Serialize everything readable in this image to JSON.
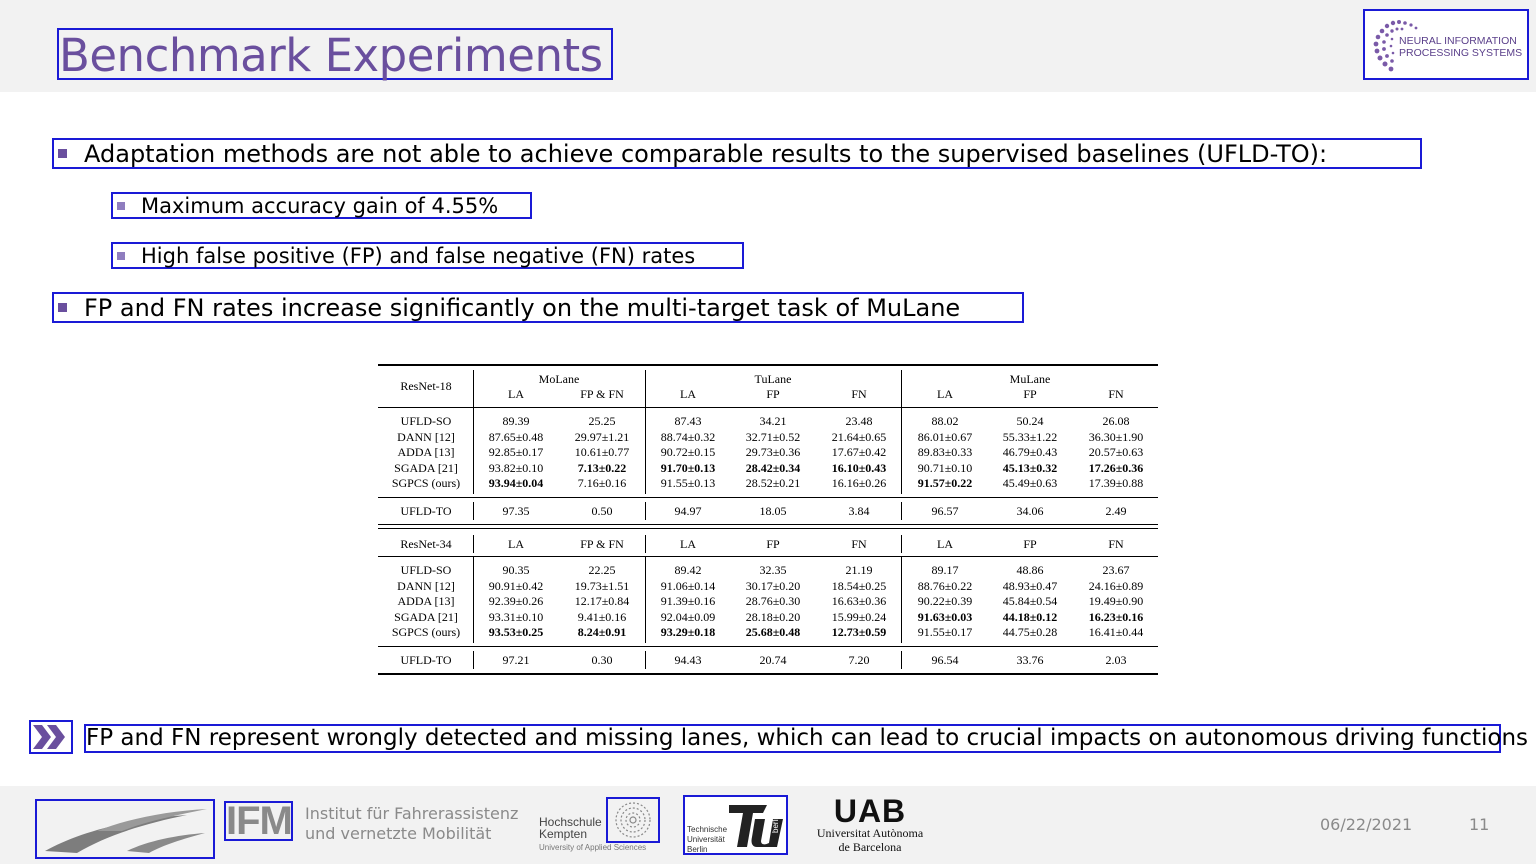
{
  "slide": {
    "title": "Benchmark Experiments",
    "logo_text_line1": "NEURAL INFORMATION",
    "logo_text_line2": "PROCESSING SYSTEMS",
    "bullets": [
      "Adaptation methods are not able to achieve comparable results to the supervised baselines (UFLD-TO):",
      "Maximum accuracy gain of 4.55%",
      "High false positive (FP) and false negative (FN) rates",
      "FP and FN rates increase significantly on the multi-target task of MuLane"
    ],
    "note": "FP and FN represent wrongly detected and missing lanes, which can lead to crucial impacts on autonomous driving functions"
  },
  "table": {
    "groups": [
      "MoLane",
      "TuLane",
      "MuLane"
    ],
    "col_headers": [
      "LA",
      "FP & FN",
      "LA",
      "FP",
      "FN",
      "LA",
      "FP",
      "FN"
    ],
    "block1": {
      "backbone": "ResNet-18",
      "methods": [
        "UFLD-SO",
        "DANN [12]",
        "ADDA [13]",
        "SGADA [21]",
        "SGPCS (ours)"
      ],
      "rows": [
        [
          "89.39",
          "25.25",
          "87.43",
          "34.21",
          "23.48",
          "88.02",
          "50.24",
          "26.08"
        ],
        [
          "87.65±0.48",
          "29.97±1.21",
          "88.74±0.32",
          "32.71±0.52",
          "21.64±0.65",
          "86.01±0.67",
          "55.33±1.22",
          "36.30±1.90"
        ],
        [
          "92.85±0.17",
          "10.61±0.77",
          "90.72±0.15",
          "29.73±0.36",
          "17.67±0.42",
          "89.83±0.33",
          "46.79±0.43",
          "20.57±0.63"
        ],
        [
          "93.82±0.10",
          "7.13±0.22",
          "91.70±0.13",
          "28.42±0.34",
          "16.10±0.43",
          "90.71±0.10",
          "45.13±0.32",
          "17.26±0.36"
        ],
        [
          "93.94±0.04",
          "7.16±0.16",
          "91.55±0.13",
          "28.52±0.21",
          "16.16±0.26",
          "91.57±0.22",
          "45.49±0.63",
          "17.39±0.88"
        ]
      ],
      "bold": [
        [
          3,
          1
        ],
        [
          3,
          2
        ],
        [
          3,
          3
        ],
        [
          3,
          4
        ],
        [
          3,
          6
        ],
        [
          3,
          7
        ],
        [
          4,
          0
        ],
        [
          4,
          5
        ]
      ],
      "baseline_name": "UFLD-TO",
      "baseline": [
        "97.35",
        "0.50",
        "94.97",
        "18.05",
        "3.84",
        "96.57",
        "34.06",
        "2.49"
      ]
    },
    "block2": {
      "backbone": "ResNet-34",
      "methods": [
        "UFLD-SO",
        "DANN [12]",
        "ADDA [13]",
        "SGADA [21]",
        "SGPCS (ours)"
      ],
      "rows": [
        [
          "90.35",
          "22.25",
          "89.42",
          "32.35",
          "21.19",
          "89.17",
          "48.86",
          "23.67"
        ],
        [
          "90.91±0.42",
          "19.73±1.51",
          "91.06±0.14",
          "30.17±0.20",
          "18.54±0.25",
          "88.76±0.22",
          "48.93±0.47",
          "24.16±0.89"
        ],
        [
          "92.39±0.26",
          "12.17±0.84",
          "91.39±0.16",
          "28.76±0.30",
          "16.63±0.36",
          "90.22±0.39",
          "45.84±0.54",
          "19.49±0.90"
        ],
        [
          "93.31±0.10",
          "9.41±0.16",
          "92.04±0.09",
          "28.18±0.20",
          "15.99±0.24",
          "91.63±0.03",
          "44.18±0.12",
          "16.23±0.16"
        ],
        [
          "93.53±0.25",
          "8.24±0.91",
          "93.29±0.18",
          "25.68±0.48",
          "12.73±0.59",
          "91.55±0.17",
          "44.75±0.28",
          "16.41±0.44"
        ]
      ],
      "bold": [
        [
          3,
          5
        ],
        [
          3,
          6
        ],
        [
          3,
          7
        ],
        [
          4,
          0
        ],
        [
          4,
          1
        ],
        [
          4,
          2
        ],
        [
          4,
          3
        ],
        [
          4,
          4
        ]
      ],
      "baseline_name": "UFLD-TO",
      "baseline": [
        "97.21",
        "0.30",
        "94.43",
        "20.74",
        "7.20",
        "96.54",
        "33.76",
        "2.03"
      ]
    }
  },
  "footer": {
    "ifm_abbrev": "IFM",
    "ifm_line1": "Institut für Fahrerassistenz",
    "ifm_line2": "und vernetzte Mobilität",
    "hk_line1": "Hochschule",
    "hk_line2": "Kempten",
    "hk_line3": "University of Applied Sciences",
    "tu_line1": "Technische",
    "tu_line2": "Universität",
    "tu_line3": "Berlin",
    "tu_vertical": "berlin",
    "uab_big": "UAB",
    "uab_line1": "Universitat Autònoma",
    "uab_line2": "de Barcelona",
    "date": "06/22/2021",
    "page": "11"
  },
  "colors": {
    "accent": "#6a4f9e",
    "annotation_box": "#1a1ad6",
    "header_bg": "#f2f2f2"
  },
  "icons": [
    "neurips-logo-icon",
    "chevron-double-right-icon",
    "road-logo-icon",
    "hochschule-spiral-icon",
    "tu-berlin-icon"
  ]
}
